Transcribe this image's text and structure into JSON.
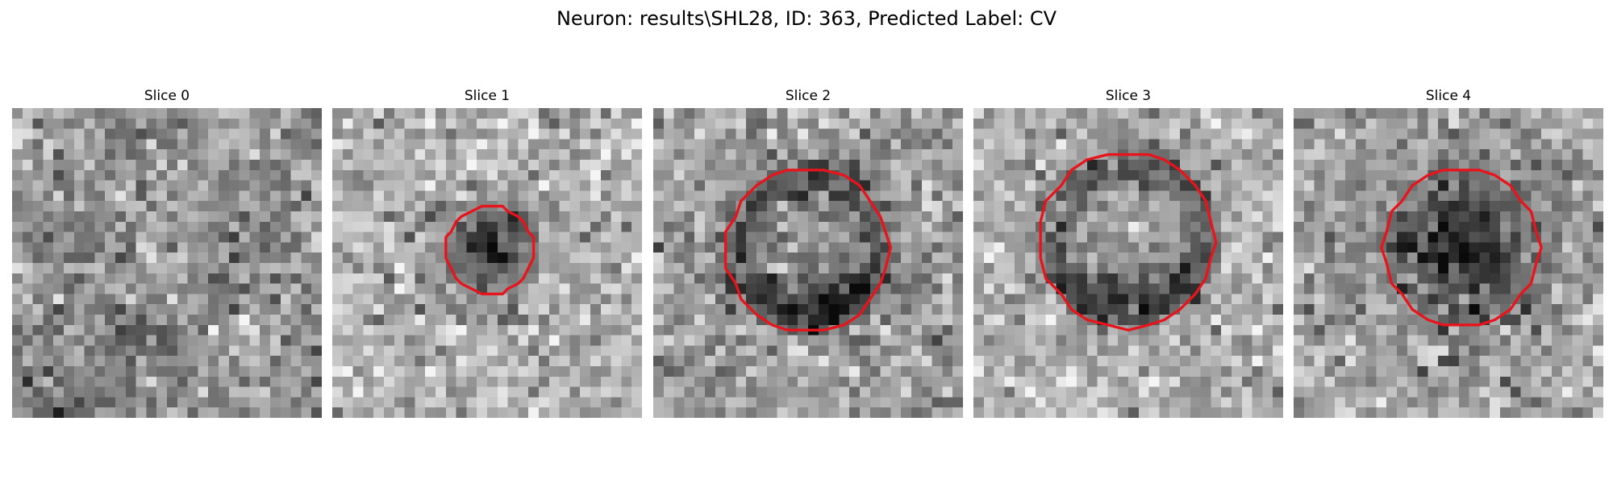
{
  "figure": {
    "title": "Neuron: results\\SHL28, ID: 363, Predicted Label: CV"
  },
  "slices": [
    {
      "title": "Slice 0",
      "has_contour": false,
      "center_brightness": "uniform"
    },
    {
      "title": "Slice 1",
      "has_contour": true,
      "center_brightness": "dark"
    },
    {
      "title": "Slice 2",
      "has_contour": true,
      "center_brightness": "ring"
    },
    {
      "title": "Slice 3",
      "has_contour": true,
      "center_brightness": "ring"
    },
    {
      "title": "Slice 4",
      "has_contour": true,
      "center_brightness": "dark"
    }
  ],
  "colors": {
    "contour": "#e8141c",
    "background": "#ffffff"
  },
  "colormap": "gray"
}
